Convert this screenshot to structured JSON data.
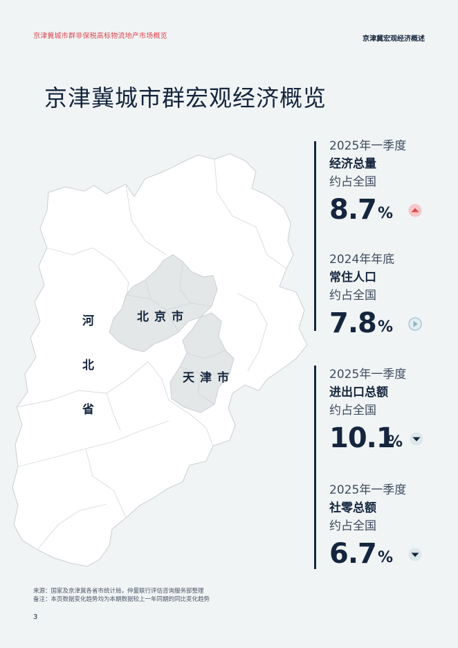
{
  "header": {
    "left": "京津冀城市群非保税高标物流地产市场概览",
    "right": "京津冀宏观经济概述"
  },
  "title": "京津冀城市群宏观经济概览",
  "map": {
    "beijing": "北京市",
    "tianjin": "天津市",
    "hebei": [
      "河",
      "北",
      "省"
    ],
    "colors": {
      "hebei_fill": "#ffffff",
      "city_fill": "#e4e7e8",
      "border": "#c9ced2"
    }
  },
  "stats": [
    {
      "period": "2025年一季度",
      "metric": "经济总量",
      "share": "约占全国",
      "value": "8.7",
      "unit": "%",
      "trend_icon": "up-triangle-icon",
      "trend_color": "#d9484f"
    },
    {
      "period": "2024年年底",
      "metric": "常住人口",
      "share": "约占全国",
      "value": "7.8",
      "unit": "%",
      "trend_icon": "right-triangle-icon",
      "trend_color": "#8fb3c4"
    },
    {
      "period": "2025年一季度",
      "metric": "进出口总额",
      "share": "约占全国",
      "value": "10.1",
      "unit": "%",
      "trend_icon": "down-triangle-icon",
      "trend_color": "#14253d"
    },
    {
      "period": "2025年一季度",
      "metric": "社零总额",
      "share": "约占全国",
      "value": "6.7",
      "unit": "%",
      "trend_icon": "down-triangle-icon",
      "trend_color": "#14253d"
    }
  ],
  "footnotes": {
    "source": "来源：国家及京津冀各省市统计局，仲量联行评估咨询服务部整理",
    "note": "备注：本页数据变化趋势均为本期数据较上一年同期的同比变化趋势"
  },
  "page_number": "3"
}
